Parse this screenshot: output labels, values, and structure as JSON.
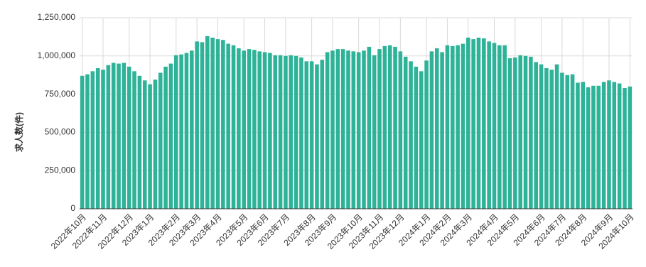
{
  "chart_data": {
    "type": "bar",
    "y_label": "求人数(件)",
    "color": "#2eb398",
    "grid": true,
    "ylim": [
      0,
      1250000
    ],
    "yticks": [
      0,
      {
        "value": 250000,
        "label": "250,000"
      },
      {
        "value": 500000,
        "label": "500,000"
      },
      {
        "value": 750000,
        "label": "750,000"
      },
      {
        "value": 1000000,
        "label": "1,000,000"
      },
      {
        "value": 1250000,
        "label": "1,250,000"
      }
    ],
    "categories": [
      "2022年10月",
      null,
      null,
      null,
      "2022年11月",
      null,
      null,
      null,
      null,
      "2022年12月",
      null,
      null,
      null,
      "2023年1月",
      null,
      null,
      null,
      null,
      "2023年2月",
      null,
      null,
      null,
      "2023年3月",
      null,
      null,
      null,
      "2023年4月",
      null,
      null,
      null,
      null,
      "2023年5月",
      null,
      null,
      null,
      "2023年6月",
      null,
      null,
      null,
      "2023年7月",
      null,
      null,
      null,
      null,
      "2023年8月",
      null,
      null,
      null,
      "2023年9月",
      null,
      null,
      null,
      null,
      "2023年10月",
      null,
      null,
      null,
      "2023年11月",
      null,
      null,
      null,
      "2023年12月",
      null,
      null,
      null,
      null,
      "2024年1月",
      null,
      null,
      null,
      "2024年2月",
      null,
      null,
      null,
      "2024年3月",
      null,
      null,
      null,
      null,
      "2024年4月",
      null,
      null,
      null,
      "2024年5月",
      null,
      null,
      null,
      null,
      "2024年6月",
      null,
      null,
      null,
      "2024年7月",
      null,
      null,
      null,
      "2024年8月",
      null,
      null,
      null,
      null,
      "2024年9月",
      null,
      null,
      null,
      "2024年10月"
    ],
    "values": [
      870000,
      880000,
      900000,
      920000,
      910000,
      940000,
      955000,
      950000,
      955000,
      930000,
      900000,
      870000,
      840000,
      815000,
      845000,
      890000,
      930000,
      950000,
      1005000,
      1010000,
      1020000,
      1035000,
      1095000,
      1090000,
      1130000,
      1120000,
      1110000,
      1105000,
      1080000,
      1070000,
      1050000,
      1035000,
      1045000,
      1040000,
      1030000,
      1025000,
      1020000,
      1005000,
      1005000,
      1000000,
      1005000,
      1000000,
      990000,
      965000,
      965000,
      945000,
      975000,
      1025000,
      1035000,
      1045000,
      1045000,
      1035000,
      1030000,
      1025000,
      1035000,
      1060000,
      1005000,
      1045000,
      1065000,
      1070000,
      1060000,
      1030000,
      995000,
      965000,
      930000,
      900000,
      970000,
      1030000,
      1050000,
      1025000,
      1070000,
      1065000,
      1070000,
      1080000,
      1120000,
      1110000,
      1120000,
      1115000,
      1095000,
      1085000,
      1070000,
      1070000,
      985000,
      990000,
      1005000,
      1000000,
      995000,
      960000,
      945000,
      920000,
      910000,
      945000,
      890000,
      875000,
      880000,
      825000,
      830000,
      795000,
      805000,
      805000,
      830000,
      840000,
      830000,
      820000,
      790000,
      800000
    ]
  }
}
